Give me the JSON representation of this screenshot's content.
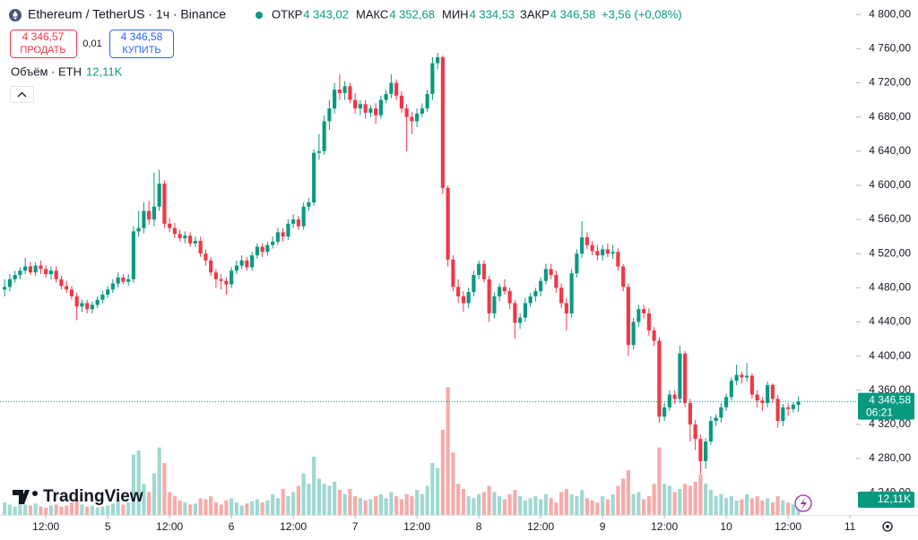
{
  "header": {
    "symbol": "Ethereum / TetherUS · 1ч · Binance",
    "ohlc": [
      {
        "name": "ОТКР",
        "label": "4 343,02"
      },
      {
        "name": "МАКС",
        "label": "4 352,68"
      },
      {
        "name": "МИН",
        "label": "4 334,53"
      },
      {
        "name": "ЗАКР",
        "label": "4 346,58"
      }
    ],
    "change": "+3,56 (+0,08%)"
  },
  "trade": {
    "sell_price": "4 346,57",
    "sell_label": "ПРОДАТЬ",
    "spread": "0,01",
    "buy_price": "4 346,58",
    "buy_label": "КУПИТЬ"
  },
  "volume_legend": {
    "label": "Объём · ETH",
    "value": "12,11K"
  },
  "branding": "TradingView",
  "chart_data": {
    "type": "candlestick",
    "open": [
      4478,
      4481,
      4490,
      4495,
      4500,
      4505,
      4498,
      4506,
      4502,
      4496,
      4500,
      4490,
      4482,
      4478,
      4470,
      4458,
      4462,
      4455,
      4460,
      4466,
      4472,
      4478,
      4485,
      4492,
      4487,
      4490,
      4546,
      4550,
      4570,
      4560,
      4575,
      4602,
      4555,
      4550,
      4543,
      4538,
      4541,
      4532,
      4535,
      4520,
      4512,
      4498,
      4490,
      4488,
      4484,
      4500,
      4506,
      4512,
      4504,
      4518,
      4528,
      4522,
      4530,
      4534,
      4545,
      4540,
      4555,
      4560,
      4552,
      4575,
      4580,
      4638,
      4640,
      4675,
      4690,
      4712,
      4708,
      4716,
      4700,
      4690,
      4695,
      4685,
      4690,
      4682,
      4700,
      4707,
      4720,
      4705,
      4690,
      4680,
      4675,
      4684,
      4690,
      4707,
      4743,
      4750,
      4597,
      4513,
      4481,
      4470,
      4462,
      4475,
      4495,
      4508,
      4490,
      4450,
      4470,
      4481,
      4476,
      4462,
      4439,
      4445,
      4462,
      4470,
      4476,
      4488,
      4502,
      4495,
      4480,
      4462,
      4450,
      4497,
      4520,
      4539,
      4530,
      4523,
      4518,
      4525,
      4520,
      4522,
      4505,
      4481,
      4413,
      4440,
      4455,
      4450,
      4430,
      4418,
      4329,
      4340,
      4355,
      4350,
      4403,
      4345,
      4320,
      4303,
      4277,
      4300,
      4324,
      4328,
      4340,
      4352,
      4371,
      4378,
      4375,
      4377,
      4355,
      4348,
      4345,
      4366,
      4350,
      4324,
      4340,
      4338,
      4343.02
    ],
    "high": [
      4490,
      4496,
      4500,
      4504,
      4515,
      4510,
      4510,
      4512,
      4506,
      4505,
      4505,
      4494,
      4488,
      4482,
      4474,
      4466,
      4466,
      4464,
      4470,
      4476,
      4482,
      4490,
      4498,
      4496,
      4496,
      4552,
      4570,
      4580,
      4582,
      4615,
      4618,
      4606,
      4562,
      4556,
      4548,
      4546,
      4545,
      4540,
      4540,
      4525,
      4516,
      4502,
      4496,
      4492,
      4504,
      4512,
      4518,
      4516,
      4522,
      4532,
      4532,
      4534,
      4540,
      4550,
      4550,
      4560,
      4566,
      4564,
      4580,
      4585,
      4642,
      4660,
      4682,
      4700,
      4720,
      4730,
      4722,
      4720,
      4708,
      4700,
      4700,
      4694,
      4696,
      4705,
      4712,
      4730,
      4724,
      4710,
      4695,
      4686,
      4690,
      4696,
      4712,
      4750,
      4755,
      4752,
      4600,
      4518,
      4490,
      4476,
      4480,
      4500,
      4512,
      4512,
      4494,
      4475,
      4485,
      4490,
      4480,
      4466,
      4450,
      4468,
      4474,
      4480,
      4492,
      4508,
      4508,
      4500,
      4485,
      4468,
      4502,
      4525,
      4558,
      4545,
      4535,
      4530,
      4530,
      4532,
      4530,
      4526,
      4508,
      4485,
      4445,
      4460,
      4460,
      4456,
      4434,
      4422,
      4345,
      4360,
      4360,
      4412,
      4406,
      4350,
      4325,
      4308,
      4304,
      4330,
      4332,
      4345,
      4356,
      4375,
      4390,
      4382,
      4392,
      4380,
      4360,
      4352,
      4370,
      4368,
      4354,
      4344,
      4345,
      4346,
      4352.68
    ],
    "low": [
      4470,
      4476,
      4486,
      4490,
      4496,
      4495,
      4494,
      4496,
      4492,
      4490,
      4486,
      4478,
      4474,
      4466,
      4442,
      4452,
      4450,
      4450,
      4456,
      4462,
      4468,
      4474,
      4480,
      4484,
      4482,
      4486,
      4540,
      4544,
      4554,
      4552,
      4570,
      4550,
      4545,
      4538,
      4534,
      4532,
      4528,
      4528,
      4516,
      4506,
      4494,
      4480,
      4478,
      4472,
      4480,
      4496,
      4502,
      4500,
      4500,
      4514,
      4516,
      4518,
      4526,
      4530,
      4534,
      4536,
      4550,
      4548,
      4548,
      4570,
      4576,
      4630,
      4636,
      4665,
      4684,
      4700,
      4700,
      4696,
      4684,
      4682,
      4678,
      4680,
      4672,
      4678,
      4696,
      4702,
      4700,
      4685,
      4640,
      4660,
      4668,
      4680,
      4686,
      4700,
      4736,
      4590,
      4505,
      4476,
      4462,
      4452,
      4456,
      4470,
      4490,
      4486,
      4440,
      4444,
      4464,
      4472,
      4455,
      4420,
      4432,
      4440,
      4458,
      4464,
      4470,
      4484,
      4490,
      4474,
      4456,
      4430,
      4445,
      4492,
      4515,
      4525,
      4518,
      4512,
      4512,
      4516,
      4514,
      4500,
      4476,
      4400,
      4408,
      4434,
      4444,
      4424,
      4412,
      4322,
      4324,
      4336,
      4344,
      4345,
      4340,
      4300,
      4290,
      4262,
      4268,
      4296,
      4318,
      4322,
      4336,
      4348,
      4366,
      4368,
      4370,
      4350,
      4340,
      4336,
      4340,
      4345,
      4316,
      4318,
      4330,
      4334,
      4334.53
    ],
    "close": [
      4481,
      4490,
      4495,
      4500,
      4505,
      4498,
      4506,
      4502,
      4496,
      4500,
      4490,
      4482,
      4478,
      4470,
      4458,
      4462,
      4455,
      4460,
      4466,
      4472,
      4478,
      4485,
      4492,
      4487,
      4490,
      4546,
      4550,
      4570,
      4560,
      4575,
      4602,
      4555,
      4550,
      4543,
      4538,
      4541,
      4532,
      4535,
      4520,
      4512,
      4498,
      4490,
      4488,
      4484,
      4500,
      4506,
      4512,
      4504,
      4518,
      4528,
      4522,
      4530,
      4534,
      4545,
      4540,
      4555,
      4560,
      4552,
      4575,
      4580,
      4638,
      4640,
      4675,
      4690,
      4712,
      4708,
      4716,
      4700,
      4690,
      4695,
      4685,
      4690,
      4682,
      4700,
      4707,
      4720,
      4705,
      4690,
      4680,
      4675,
      4684,
      4690,
      4707,
      4743,
      4750,
      4597,
      4513,
      4481,
      4470,
      4462,
      4475,
      4495,
      4508,
      4490,
      4450,
      4470,
      4481,
      4476,
      4462,
      4439,
      4445,
      4462,
      4470,
      4476,
      4488,
      4502,
      4495,
      4480,
      4462,
      4450,
      4497,
      4520,
      4539,
      4530,
      4523,
      4518,
      4525,
      4520,
      4522,
      4505,
      4481,
      4413,
      4440,
      4455,
      4450,
      4430,
      4418,
      4329,
      4340,
      4355,
      4350,
      4403,
      4345,
      4320,
      4303,
      4277,
      4300,
      4324,
      4328,
      4340,
      4352,
      4371,
      4378,
      4375,
      4377,
      4355,
      4348,
      4345,
      4366,
      4350,
      4324,
      4340,
      4338,
      4343.02,
      4346.58
    ],
    "up_color": "#089981",
    "down_color": "#f23645",
    "ylim": [
      4214,
      4817
    ],
    "yticks": [
      {
        "value": 4800,
        "label": "4 800,00"
      },
      {
        "value": 4760,
        "label": "4 760,00"
      },
      {
        "value": 4720,
        "label": "4 720,00"
      },
      {
        "value": 4680,
        "label": "4 680,00"
      },
      {
        "value": 4640,
        "label": "4 640,00"
      },
      {
        "value": 4600,
        "label": "4 600,00"
      },
      {
        "value": 4560,
        "label": "4 560,00"
      },
      {
        "value": 4520,
        "label": "4 520,00"
      },
      {
        "value": 4480,
        "label": "4 480,00"
      },
      {
        "value": 4440,
        "label": "4 440,00"
      },
      {
        "value": 4400,
        "label": "4 400,00"
      },
      {
        "value": 4360,
        "label": "4 360,00"
      },
      {
        "value": 4320,
        "label": "4 320,00"
      },
      {
        "value": 4280,
        "label": "4 280,00"
      },
      {
        "value": 4240,
        "label": "4 240,00"
      }
    ],
    "xlim": [
      -0.9,
      165.2
    ],
    "xticks": [
      {
        "value": 8,
        "label": "12:00"
      },
      {
        "value": 20,
        "label": "5"
      },
      {
        "value": 32,
        "label": "12:00"
      },
      {
        "value": 44,
        "label": "6"
      },
      {
        "value": 56,
        "label": "12:00"
      },
      {
        "value": 68,
        "label": "7"
      },
      {
        "value": 80,
        "label": "12:00"
      },
      {
        "value": 92,
        "label": "8"
      },
      {
        "value": 104,
        "label": "12:00"
      },
      {
        "value": 116,
        "label": "9"
      },
      {
        "value": 128,
        "label": "12:00"
      },
      {
        "value": 140,
        "label": "10"
      },
      {
        "value": 152,
        "label": "12:00"
      },
      {
        "value": 164,
        "label": "11"
      }
    ],
    "grid": false,
    "last_price": {
      "label": "4 346,58",
      "countdown": "06:21"
    },
    "volume": {
      "values": [
        12,
        10,
        8,
        14,
        10,
        9,
        11,
        8,
        7,
        9,
        10,
        8,
        9,
        12,
        15,
        10,
        8,
        9,
        7,
        8,
        9,
        11,
        14,
        10,
        12,
        58,
        62,
        30,
        22,
        40,
        65,
        50,
        22,
        18,
        14,
        12,
        10,
        11,
        16,
        15,
        18,
        12,
        10,
        14,
        16,
        12,
        9,
        11,
        13,
        15,
        12,
        14,
        20,
        16,
        25,
        18,
        22,
        28,
        40,
        30,
        56,
        35,
        30,
        28,
        32,
        24,
        20,
        25,
        18,
        16,
        14,
        15,
        18,
        20,
        16,
        22,
        18,
        15,
        20,
        18,
        24,
        20,
        28,
        50,
        45,
        82,
        123,
        60,
        30,
        25,
        18,
        16,
        20,
        22,
        28,
        22,
        18,
        15,
        20,
        24,
        18,
        14,
        16,
        18,
        15,
        20,
        16,
        12,
        22,
        25,
        20,
        18,
        24,
        16,
        14,
        12,
        18,
        15,
        20,
        28,
        35,
        43,
        20,
        22,
        15,
        18,
        30,
        65,
        30,
        28,
        22,
        25,
        30,
        28,
        32,
        39,
        30,
        24,
        18,
        20,
        16,
        18,
        14,
        15,
        20,
        16,
        18,
        14,
        16,
        12,
        18,
        14,
        12,
        10,
        12.11
      ],
      "last_label": "12,11K",
      "ylim": [
        0,
        125
      ],
      "up_color": "#9fd8d0",
      "down_color": "#f7aaa8"
    }
  }
}
